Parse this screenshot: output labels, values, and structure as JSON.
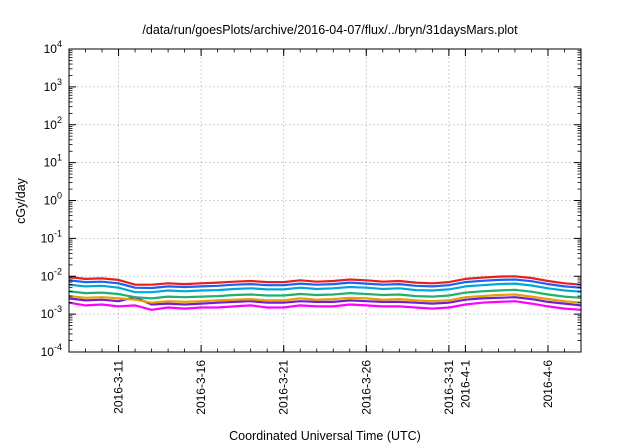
{
  "chart_data": {
    "type": "line",
    "title": "/data/run/goesPlots/archive/2016-04-07/flux/../bryn/31daysMars.plot",
    "xlabel": "Coordinated Universal Time (UTC)",
    "ylabel": "cGy/day",
    "y_scale": "log",
    "ylim": [
      0.0001,
      10000
    ],
    "y_ticks": [
      {
        "value": 0.0001,
        "base": "10",
        "exp": "-4"
      },
      {
        "value": 0.001,
        "base": "10",
        "exp": "-3"
      },
      {
        "value": 0.01,
        "base": "10",
        "exp": "-2"
      },
      {
        "value": 0.1,
        "base": "10",
        "exp": "-1"
      },
      {
        "value": 1,
        "base": "10",
        "exp": "0"
      },
      {
        "value": 10,
        "base": "10",
        "exp": "1"
      },
      {
        "value": 100,
        "base": "10",
        "exp": "2"
      },
      {
        "value": 1000,
        "base": "10",
        "exp": "3"
      },
      {
        "value": 10000,
        "base": "10",
        "exp": "4"
      }
    ],
    "xlim": [
      "2016-03-08",
      "2016-04-08"
    ],
    "x_ticks": [
      {
        "label": "2016-3-11",
        "date": "2016-03-11"
      },
      {
        "label": "2016-3-16",
        "date": "2016-03-16"
      },
      {
        "label": "2016-3-21",
        "date": "2016-03-21"
      },
      {
        "label": "2016-3-26",
        "date": "2016-03-26"
      },
      {
        "label": "2016-3-31",
        "date": "2016-03-31"
      },
      {
        "label": "2016-4-1",
        "date": "2016-04-01"
      },
      {
        "label": "2016-4-6",
        "date": "2016-04-06"
      }
    ],
    "grid": true,
    "x": [
      "2016-03-08",
      "2016-03-09",
      "2016-03-10",
      "2016-03-11",
      "2016-03-12",
      "2016-03-13",
      "2016-03-14",
      "2016-03-15",
      "2016-03-16",
      "2016-03-17",
      "2016-03-18",
      "2016-03-19",
      "2016-03-20",
      "2016-03-21",
      "2016-03-22",
      "2016-03-23",
      "2016-03-24",
      "2016-03-25",
      "2016-03-26",
      "2016-03-27",
      "2016-03-28",
      "2016-03-29",
      "2016-03-30",
      "2016-03-31",
      "2016-04-01",
      "2016-04-02",
      "2016-04-03",
      "2016-04-04",
      "2016-04-05",
      "2016-04-06",
      "2016-04-07",
      "2016-04-08"
    ],
    "series": [
      {
        "color": "#e8201c",
        "values": [
          0.0095,
          0.0085,
          0.0088,
          0.008,
          0.006,
          0.006,
          0.0065,
          0.0062,
          0.0065,
          0.0068,
          0.0072,
          0.0075,
          0.007,
          0.007,
          0.0078,
          0.0072,
          0.0075,
          0.0082,
          0.0078,
          0.0072,
          0.0075,
          0.0068,
          0.0065,
          0.007,
          0.0085,
          0.0092,
          0.0098,
          0.01,
          0.009,
          0.0075,
          0.0065,
          0.006
        ]
      },
      {
        "color": "#1f5ff2",
        "values": [
          0.0078,
          0.007,
          0.0072,
          0.0065,
          0.005,
          0.0049,
          0.0054,
          0.0052,
          0.0054,
          0.0056,
          0.006,
          0.0062,
          0.0058,
          0.0058,
          0.0064,
          0.006,
          0.0062,
          0.0068,
          0.0064,
          0.006,
          0.0062,
          0.0056,
          0.0054,
          0.0058,
          0.007,
          0.0076,
          0.008,
          0.0082,
          0.0074,
          0.0062,
          0.0054,
          0.005
        ]
      },
      {
        "color": "#00a8d8",
        "values": [
          0.006,
          0.0054,
          0.0056,
          0.005,
          0.0038,
          0.0038,
          0.0042,
          0.004,
          0.0042,
          0.0043,
          0.0046,
          0.0048,
          0.0045,
          0.0045,
          0.005,
          0.0046,
          0.0048,
          0.0052,
          0.005,
          0.0046,
          0.0048,
          0.0043,
          0.0042,
          0.0045,
          0.0054,
          0.0058,
          0.0062,
          0.0064,
          0.0057,
          0.0048,
          0.0042,
          0.0039
        ]
      },
      {
        "color": "#20b070",
        "values": [
          0.004,
          0.0036,
          0.0037,
          0.0034,
          0.0028,
          0.0026,
          0.0029,
          0.0028,
          0.0029,
          0.003,
          0.0032,
          0.0033,
          0.0031,
          0.0031,
          0.0034,
          0.0032,
          0.0033,
          0.0036,
          0.0034,
          0.0032,
          0.0033,
          0.003,
          0.0029,
          0.0031,
          0.0037,
          0.004,
          0.0042,
          0.0044,
          0.0039,
          0.0033,
          0.0029,
          0.0027
        ]
      },
      {
        "color": "#e8a000",
        "values": [
          0.003,
          0.0027,
          0.0028,
          0.0026,
          0.0024,
          0.002,
          0.0022,
          0.0021,
          0.0022,
          0.0023,
          0.0024,
          0.0025,
          0.0023,
          0.0023,
          0.0026,
          0.0024,
          0.0025,
          0.0027,
          0.0026,
          0.0024,
          0.0025,
          0.0023,
          0.0022,
          0.0023,
          0.0028,
          0.003,
          0.0032,
          0.0033,
          0.0029,
          0.0025,
          0.0022,
          0.002
        ]
      },
      {
        "color": "#7020d0",
        "values": [
          0.0026,
          0.0023,
          0.0024,
          0.0022,
          0.0028,
          0.0018,
          0.0019,
          0.0018,
          0.0019,
          0.002,
          0.0021,
          0.0022,
          0.002,
          0.002,
          0.0022,
          0.0021,
          0.0021,
          0.0023,
          0.0022,
          0.0021,
          0.0021,
          0.002,
          0.0019,
          0.002,
          0.0024,
          0.0026,
          0.0027,
          0.0028,
          0.0025,
          0.0021,
          0.0019,
          0.0017
        ]
      },
      {
        "color": "#ff00ff",
        "values": [
          0.002,
          0.0017,
          0.0018,
          0.0016,
          0.0017,
          0.0013,
          0.0015,
          0.0014,
          0.0015,
          0.0015,
          0.0016,
          0.0017,
          0.0015,
          0.0015,
          0.0017,
          0.0016,
          0.0016,
          0.0018,
          0.0017,
          0.0016,
          0.0016,
          0.0015,
          0.0014,
          0.0015,
          0.0018,
          0.002,
          0.0021,
          0.0022,
          0.0019,
          0.0016,
          0.0014,
          0.0013
        ]
      }
    ]
  }
}
